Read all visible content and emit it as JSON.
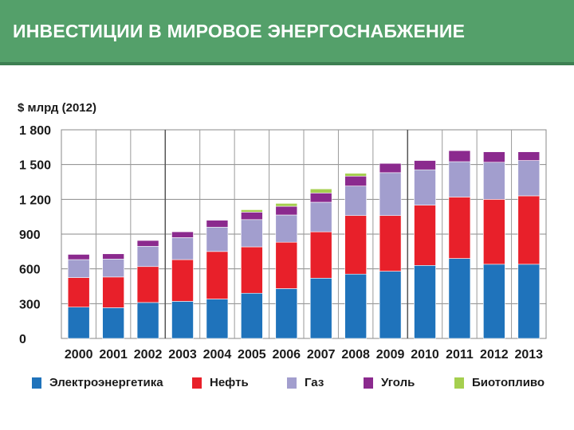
{
  "header": {
    "title": "ИНВЕСТИЦИИ В МИРОВОЕ ЭНЕРГОСНАБЖЕНИЕ"
  },
  "colors": {
    "header_bg": "#54a06a",
    "electric": "#1f73bb",
    "oil": "#e8202a",
    "gas": "#a29ece",
    "coal": "#8b2a8e",
    "biofuel": "#a5cf4f"
  },
  "chart_data": {
    "type": "bar",
    "stacked": true,
    "ylabel": "$ млрд (2012)",
    "ylim": [
      0,
      1800
    ],
    "yticks": [
      0,
      300,
      600,
      900,
      1200,
      1500,
      1800
    ],
    "ytick_labels": [
      "0",
      "300",
      "600",
      "900",
      "1 200",
      "1 500",
      "1 800"
    ],
    "grid": true,
    "legend_position": "bottom",
    "categories": [
      "2000",
      "2001",
      "2002",
      "2003",
      "2004",
      "2005",
      "2006",
      "2007",
      "2008",
      "2009",
      "2010",
      "2011",
      "2012",
      "2013"
    ],
    "series": [
      {
        "name": "Электроэнергетика",
        "color": "#1f73bb",
        "values": [
          270,
          265,
          310,
          320,
          340,
          390,
          430,
          520,
          555,
          580,
          630,
          690,
          640,
          640
        ]
      },
      {
        "name": "Нефть",
        "color": "#e8202a",
        "values": [
          255,
          265,
          310,
          360,
          410,
          400,
          400,
          400,
          505,
          480,
          520,
          530,
          560,
          590
        ]
      },
      {
        "name": "Газ",
        "color": "#a29ece",
        "values": [
          155,
          155,
          175,
          190,
          210,
          235,
          235,
          255,
          255,
          370,
          305,
          305,
          320,
          305
        ]
      },
      {
        "name": "Уголь",
        "color": "#8b2a8e",
        "values": [
          45,
          45,
          50,
          50,
          60,
          65,
          75,
          80,
          85,
          80,
          80,
          95,
          90,
          75
        ]
      },
      {
        "name": "Биотопливо",
        "color": "#a5cf4f",
        "values": [
          0,
          0,
          0,
          0,
          0,
          20,
          25,
          35,
          25,
          0,
          0,
          0,
          0,
          0
        ]
      }
    ]
  }
}
